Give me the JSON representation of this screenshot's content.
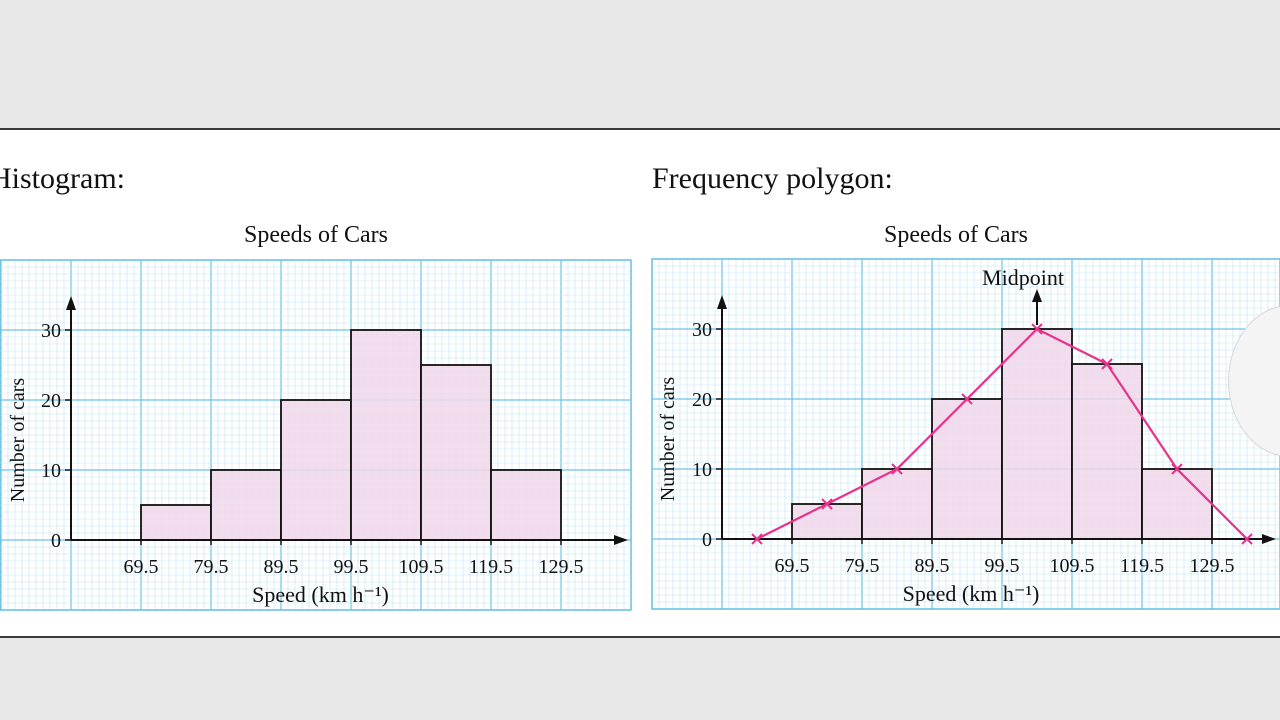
{
  "headings": {
    "left": "Histogram:",
    "right": "Frequency polygon:"
  },
  "polygon_annotation": "Midpoint",
  "colors": {
    "grid_minor": "#bfe3f2",
    "grid_major": "#6cc3e6",
    "bar_fill": "#f0d7ea",
    "polygon": "#e8328c",
    "axis": "#111111"
  },
  "chart_data": [
    {
      "type": "bar",
      "title": "Speeds of Cars",
      "xlabel": "Speed (km h⁻¹)",
      "ylabel": "Number of cars",
      "x_ticks": [
        "69.5",
        "79.5",
        "89.5",
        "99.5",
        "109.5",
        "119.5",
        "129.5"
      ],
      "y_ticks": [
        0,
        10,
        20,
        30
      ],
      "bins": [
        [
          69.5,
          79.5
        ],
        [
          79.5,
          89.5
        ],
        [
          89.5,
          99.5
        ],
        [
          99.5,
          109.5
        ],
        [
          109.5,
          119.5
        ],
        [
          119.5,
          129.5
        ]
      ],
      "values": [
        5,
        10,
        20,
        30,
        25,
        10
      ],
      "xlim": [
        59.5,
        139.5
      ],
      "ylim": [
        0,
        40
      ],
      "grid": true
    },
    {
      "type": "line",
      "title": "Speeds of Cars",
      "xlabel": "Speed (km h⁻¹)",
      "ylabel": "Number of cars",
      "x_ticks": [
        "69.5",
        "79.5",
        "89.5",
        "99.5",
        "109.5",
        "119.5",
        "129.5"
      ],
      "y_ticks": [
        0,
        10,
        20,
        30
      ],
      "bins": [
        [
          69.5,
          79.5
        ],
        [
          79.5,
          89.5
        ],
        [
          89.5,
          99.5
        ],
        [
          99.5,
          109.5
        ],
        [
          109.5,
          119.5
        ],
        [
          119.5,
          129.5
        ]
      ],
      "values": [
        5,
        10,
        20,
        30,
        25,
        10
      ],
      "polygon_x": [
        64.5,
        74.5,
        84.5,
        94.5,
        104.5,
        114.5,
        124.5,
        134.5
      ],
      "polygon_y": [
        0,
        5,
        10,
        20,
        30,
        25,
        10,
        0
      ],
      "midpoint_marker_x": 104.5,
      "xlim": [
        59.5,
        139.5
      ],
      "ylim": [
        0,
        40
      ],
      "grid": true
    }
  ]
}
